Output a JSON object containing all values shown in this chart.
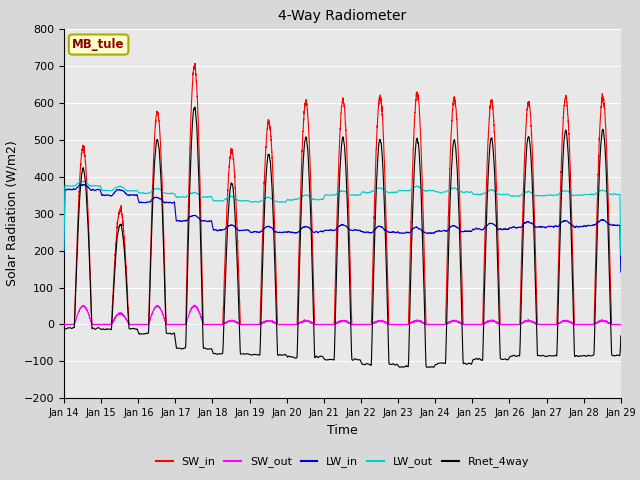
{
  "title": "4-Way Radiometer",
  "xlabel": "Time",
  "ylabel": "Solar Radiation (W/m2)",
  "ylim": [
    -200,
    800
  ],
  "yticks": [
    -200,
    -100,
    0,
    100,
    200,
    300,
    400,
    500,
    600,
    700,
    800
  ],
  "station_label": "MB_tule",
  "fig_bg_color": "#d8d8d8",
  "plot_bg_color": "#e8e8e8",
  "line_colors": {
    "SW_in": "#ff0000",
    "SW_out": "#ff00ff",
    "LW_in": "#0000cc",
    "LW_out": "#00cccc",
    "Rnet_4way": "#000000"
  },
  "xtick_labels": [
    "Jan 14",
    "Jan 15",
    "Jan 16",
    "Jan 17",
    "Jan 18",
    "Jan 19",
    "Jan 20",
    "Jan 21",
    "Jan 22",
    "Jan 23",
    "Jan 24",
    "Jan 25",
    "Jan 26",
    "Jan 27",
    "Jan 28",
    "Jan 29"
  ],
  "days": 15,
  "pts_per_day": 288
}
